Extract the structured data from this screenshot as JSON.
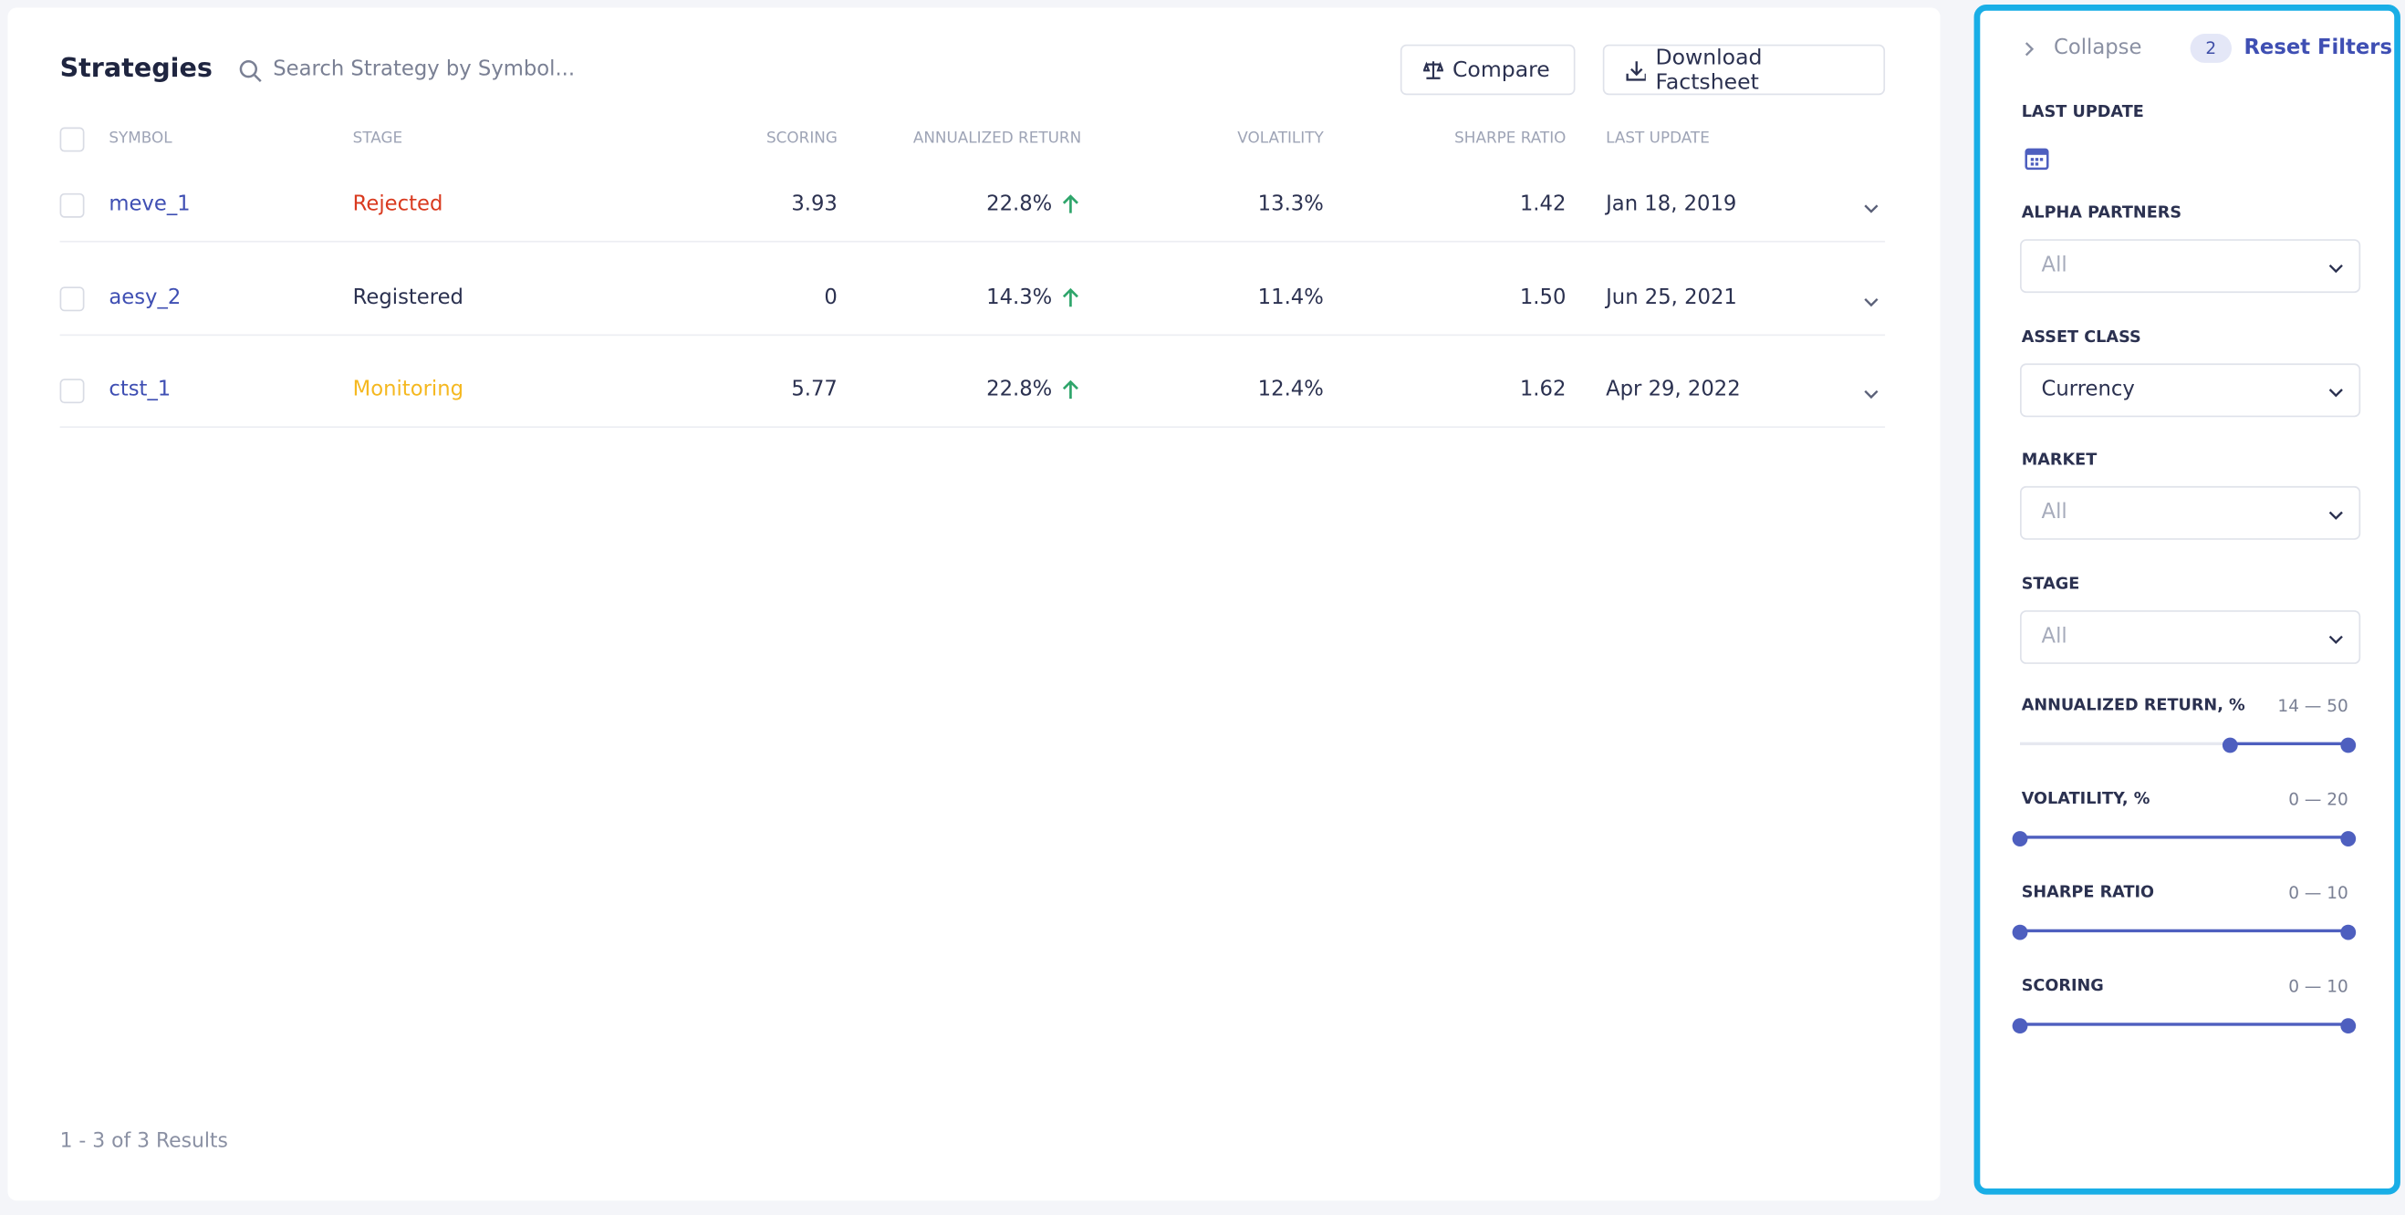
{
  "header": {
    "title": "Strategies",
    "search_placeholder": "Search Strategy by Symbol...",
    "compare_button": "Compare",
    "download_button": "Download Factsheet"
  },
  "table": {
    "columns": [
      "SYMBOL",
      "STAGE",
      "SCORING",
      "ANNUALIZED RETURN",
      "VOLATILITY",
      "SHARPE RATIO",
      "LAST UPDATE"
    ],
    "rows": [
      {
        "symbol": "meve_1",
        "stage": "Rejected",
        "stage_color": "#d93a1f",
        "scoring": "3.93",
        "annualized_return": "22.8%",
        "volatility": "13.3%",
        "sharpe_ratio": "1.42",
        "last_update": "Jan 18, 2019"
      },
      {
        "symbol": "aesy_2",
        "stage": "Registered",
        "stage_color": "#2b3150",
        "scoring": "0",
        "annualized_return": "14.3%",
        "volatility": "11.4%",
        "sharpe_ratio": "1.50",
        "last_update": "Jun 25, 2021"
      },
      {
        "symbol": "ctst_1",
        "stage": "Monitoring",
        "stage_color": "#f5b820",
        "scoring": "5.77",
        "annualized_return": "22.8%",
        "volatility": "12.4%",
        "sharpe_ratio": "1.62",
        "last_update": "Apr 29, 2022"
      }
    ],
    "footer": "1 - 3 of 3 Results"
  },
  "filters": {
    "collapse": "Collapse",
    "active_count": "2",
    "reset": "Reset Filters",
    "last_update_label": "LAST UPDATE",
    "selects": [
      {
        "label": "ALPHA PARTNERS",
        "value": "All",
        "placeholder": true
      },
      {
        "label": "ASSET CLASS",
        "value": "Currency",
        "placeholder": false
      },
      {
        "label": "MARKET",
        "value": "All",
        "placeholder": true
      },
      {
        "label": "STAGE",
        "value": "All",
        "placeholder": true
      }
    ],
    "sliders": [
      {
        "label": "ANNUALIZED RETURN, %",
        "range": "14 — 50"
      },
      {
        "label": "VOLATILITY, %",
        "range": "0 — 20"
      },
      {
        "label": "SHARPE RATIO",
        "range": "0 — 10"
      },
      {
        "label": "SCORING",
        "range": "0 — 10"
      }
    ]
  }
}
